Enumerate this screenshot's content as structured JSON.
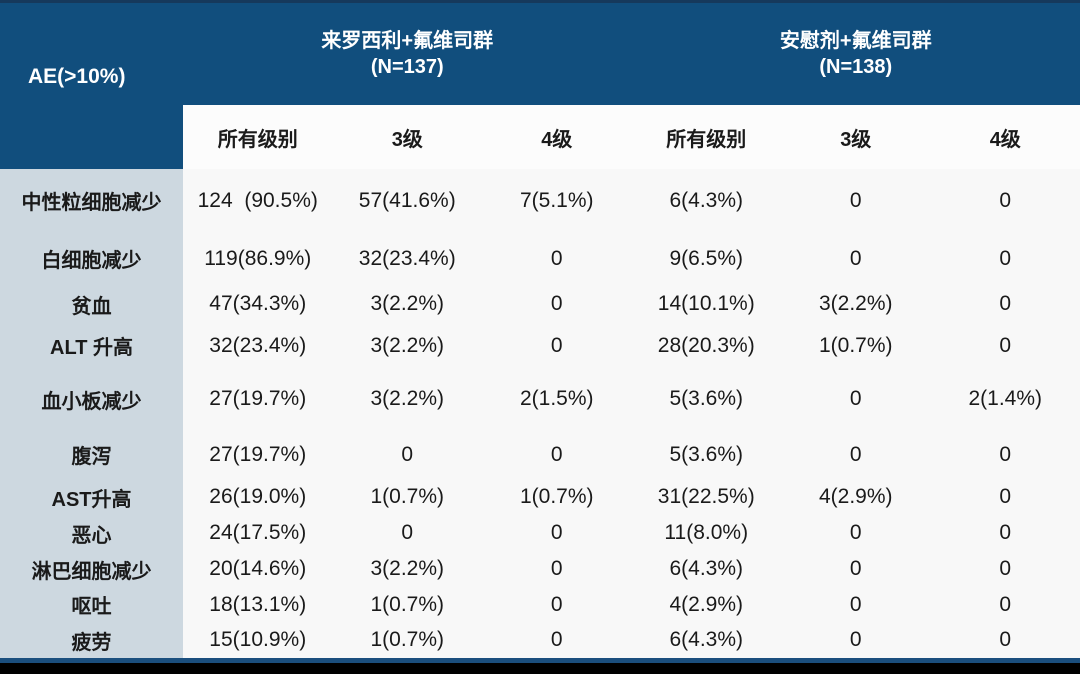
{
  "chart_data": {
    "type": "table",
    "title": "AE(>10%)",
    "groups": [
      {
        "title": "来罗西利+氟维司群",
        "n": "(N=137)"
      },
      {
        "title": "安慰剂+氟维司群",
        "n": "(N=138)"
      }
    ],
    "subheaders": [
      "所有级别",
      "3级",
      "4级",
      "所有级别",
      "3级",
      "4级"
    ],
    "rows": [
      {
        "label": "中性粒细胞减少",
        "values": [
          "124  (90.5%)",
          "57(41.6%)",
          "7(5.1%)",
          "6(4.3%)",
          "0",
          "0"
        ]
      },
      {
        "label": "白细胞减少",
        "values": [
          "119(86.9%)",
          "32(23.4%)",
          "0",
          "9(6.5%)",
          "0",
          "0"
        ]
      },
      {
        "label": "贫血",
        "values": [
          "47(34.3%)",
          "3(2.2%)",
          "0",
          "14(10.1%)",
          "3(2.2%)",
          "0"
        ]
      },
      {
        "label": "ALT 升高",
        "values": [
          "32(23.4%)",
          "3(2.2%)",
          "0",
          "28(20.3%)",
          "1(0.7%)",
          "0"
        ]
      },
      {
        "label": "血小板减少",
        "values": [
          "27(19.7%)",
          "3(2.2%)",
          "2(1.5%)",
          "5(3.6%)",
          "0",
          "2(1.4%)"
        ]
      },
      {
        "label": "腹泻",
        "values": [
          "27(19.7%)",
          "0",
          "0",
          "5(3.6%)",
          "0",
          "0"
        ]
      },
      {
        "label": "AST升高",
        "values": [
          "26(19.0%)",
          "1(0.7%)",
          "1(0.7%)",
          "31(22.5%)",
          "4(2.9%)",
          "0"
        ]
      },
      {
        "label": "恶心",
        "values": [
          "24(17.5%)",
          "0",
          "0",
          "11(8.0%)",
          "0",
          "0"
        ]
      },
      {
        "label": "淋巴细胞减少",
        "values": [
          "20(14.6%)",
          "3(2.2%)",
          "0",
          "6(4.3%)",
          "0",
          "0"
        ]
      },
      {
        "label": "呕吐",
        "values": [
          "18(13.1%)",
          "1(0.7%)",
          "0",
          "4(2.9%)",
          "0",
          "0"
        ]
      },
      {
        "label": "疲劳",
        "values": [
          "15(10.9%)",
          "1(0.7%)",
          "0",
          "6(4.3%)",
          "0",
          "0"
        ]
      }
    ],
    "layout": {
      "legend": "none",
      "grid": "off"
    }
  },
  "colors": {
    "header_navy": "#114e7d",
    "label_column_blue": "#cdd8e0",
    "body_background": "#f8f8f8",
    "footer_blue_bar": "#1b4f7e",
    "footer_black_bar": "#000000",
    "header_text": "#ffffff",
    "body_text": "#1a1a1a"
  }
}
